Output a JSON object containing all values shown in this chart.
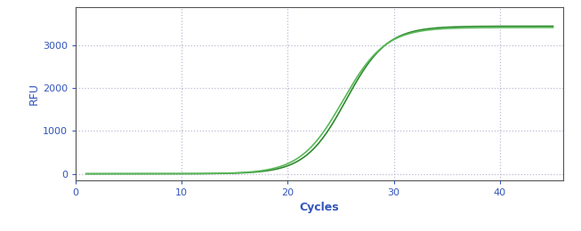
{
  "line_color": "#2d8a2d",
  "line_color2": "#5ab85a",
  "background_color": "#ffffff",
  "grid_color": "#aaaacc",
  "xlabel": "Cycles",
  "ylabel": "RFU",
  "xlim": [
    0,
    46
  ],
  "ylim": [
    -150,
    3900
  ],
  "xticks": [
    0,
    10,
    20,
    30,
    40
  ],
  "yticks": [
    0,
    1000,
    2000,
    3000
  ],
  "sigmoid_L": 3450,
  "sigmoid_k": 0.52,
  "sigmoid_x0": 25.5,
  "sigmoid_L2": 3420,
  "sigmoid_k2": 0.5,
  "sigmoid_x02": 25.2,
  "x_start": 1,
  "x_end": 45,
  "line_width": 1.2,
  "label_fontsize": 9,
  "tick_fontsize": 8,
  "tick_color": "#3355bb",
  "label_color": "#3355bb",
  "spine_color": "#555555"
}
